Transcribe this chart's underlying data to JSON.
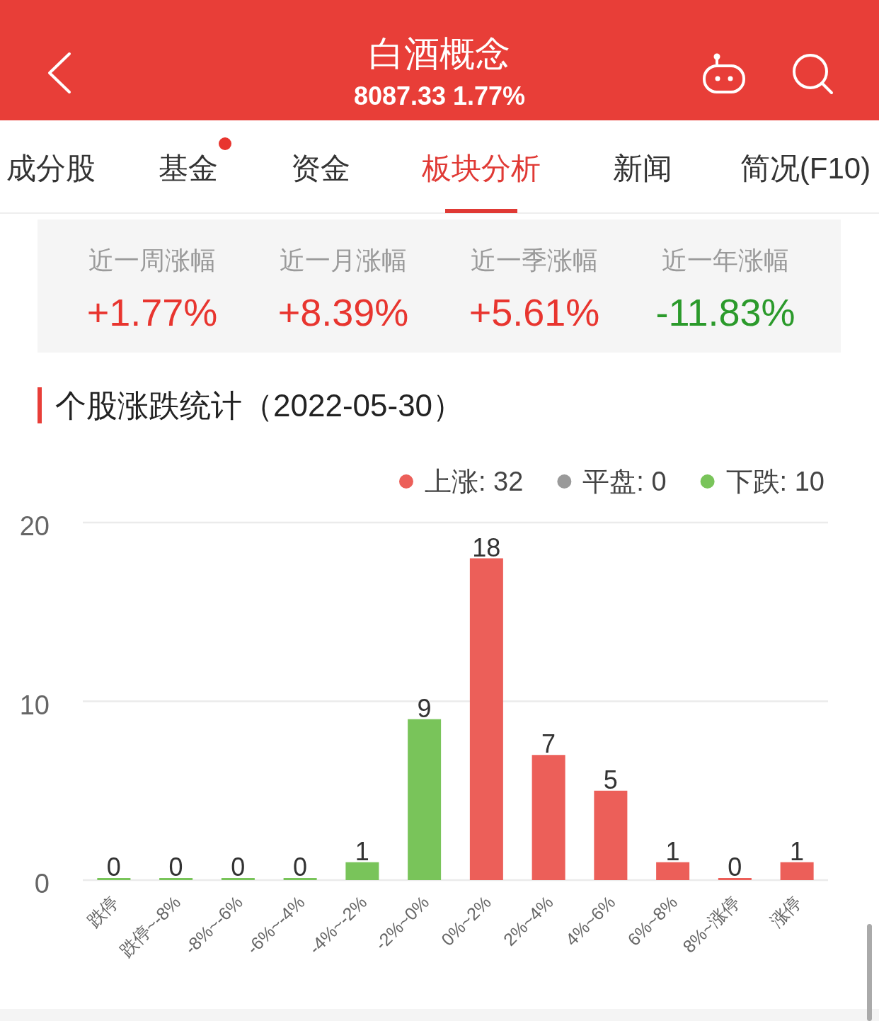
{
  "chart_data": [
    {
      "type": "other",
      "title": "白酒概念",
      "subtitle": "8087.33 1.77%",
      "annotations": [
        "成分股",
        "基金",
        "资金",
        "板块分析",
        "新闻",
        "简况(F10)",
        "近一周涨幅",
        "+1.77%",
        "近一月涨幅",
        "+8.39%",
        "近一季涨幅",
        "+5.61%",
        "近一年涨幅",
        "-11.83%"
      ]
    },
    {
      "type": "bar",
      "title": "个股涨跌统计（2022-05-30）",
      "categories": [
        "跌停",
        "跌停~-8%",
        "-8%~-6%",
        "-6%~-4%",
        "-4%~-2%",
        "-2%~0%",
        "0%~2%",
        "2%~4%",
        "4%~6%",
        "6%~8%",
        "8%~涨停",
        "涨停"
      ],
      "series": [
        {
          "name": "上涨: 32",
          "color": "#ec5f59",
          "values": [
            null,
            null,
            null,
            null,
            null,
            null,
            18,
            7,
            5,
            1,
            0,
            1
          ]
        },
        {
          "name": "平盘: 0",
          "color": "#9a9a9a",
          "values": [
            null,
            null,
            null,
            null,
            null,
            null,
            null,
            null,
            null,
            null,
            null,
            null
          ]
        },
        {
          "name": "下跌: 10",
          "color": "#79c45a",
          "values": [
            0,
            0,
            0,
            0,
            1,
            9,
            null,
            null,
            null,
            null,
            null,
            null
          ]
        }
      ],
      "ylim": [
        0,
        20
      ],
      "yticks": [
        0,
        10,
        20
      ],
      "grid": "y",
      "legend": "top right",
      "data_labels": true
    }
  ]
}
